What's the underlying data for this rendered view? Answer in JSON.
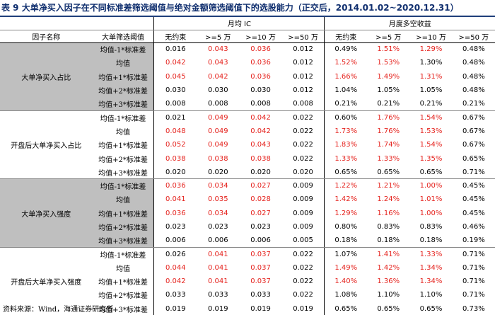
{
  "title": {
    "number": "表 9",
    "text": "大单净买入因子在不同标准差筛选阈值与绝对金额筛选阈值下的选股能力（正交后，2014.01.02~2020.12.31）"
  },
  "header": {
    "factor_name": "因子名称",
    "threshold": "大单筛选阈值",
    "ic_group": "月均 IC",
    "ret_group": "月度多空收益",
    "cols": [
      "无约束",
      ">=5 万",
      ">=10 万",
      ">=50 万"
    ]
  },
  "highlight_color": "#e5231e",
  "groups": [
    {
      "name": "大单净买入占比",
      "rows": [
        {
          "thr": "均值-1*标准差",
          "ic": [
            "0.016",
            "0.043",
            "0.036",
            "0.012"
          ],
          "ic_red": [
            false,
            true,
            true,
            false
          ],
          "ret": [
            "0.49%",
            "1.51%",
            "1.29%",
            "0.48%"
          ],
          "ret_red": [
            false,
            true,
            true,
            false
          ]
        },
        {
          "thr": "均值",
          "ic": [
            "0.042",
            "0.043",
            "0.036",
            "0.012"
          ],
          "ic_red": [
            true,
            true,
            true,
            false
          ],
          "ret": [
            "1.52%",
            "1.53%",
            "1.30%",
            "0.48%"
          ],
          "ret_red": [
            true,
            true,
            false,
            false
          ]
        },
        {
          "thr": "均值+1*标准差",
          "ic": [
            "0.045",
            "0.042",
            "0.036",
            "0.012"
          ],
          "ic_red": [
            true,
            true,
            true,
            false
          ],
          "ret": [
            "1.66%",
            "1.49%",
            "1.31%",
            "0.48%"
          ],
          "ret_red": [
            true,
            true,
            true,
            false
          ]
        },
        {
          "thr": "均值+2*标准差",
          "ic": [
            "0.030",
            "0.030",
            "0.030",
            "0.012"
          ],
          "ic_red": [
            false,
            false,
            false,
            false
          ],
          "ret": [
            "1.04%",
            "1.05%",
            "1.05%",
            "0.48%"
          ],
          "ret_red": [
            false,
            false,
            false,
            false
          ]
        },
        {
          "thr": "均值+3*标准差",
          "ic": [
            "0.008",
            "0.008",
            "0.008",
            "0.008"
          ],
          "ic_red": [
            false,
            false,
            false,
            false
          ],
          "ret": [
            "0.21%",
            "0.21%",
            "0.21%",
            "0.21%"
          ],
          "ret_red": [
            false,
            false,
            false,
            false
          ]
        }
      ]
    },
    {
      "name": "开盘后大单净买入占比",
      "rows": [
        {
          "thr": "均值-1*标准差",
          "ic": [
            "0.021",
            "0.049",
            "0.042",
            "0.022"
          ],
          "ic_red": [
            false,
            true,
            true,
            false
          ],
          "ret": [
            "0.60%",
            "1.76%",
            "1.54%",
            "0.67%"
          ],
          "ret_red": [
            false,
            true,
            true,
            false
          ]
        },
        {
          "thr": "均值",
          "ic": [
            "0.048",
            "0.049",
            "0.042",
            "0.022"
          ],
          "ic_red": [
            true,
            true,
            true,
            false
          ],
          "ret": [
            "1.73%",
            "1.76%",
            "1.53%",
            "0.67%"
          ],
          "ret_red": [
            true,
            true,
            true,
            false
          ]
        },
        {
          "thr": "均值+1*标准差",
          "ic": [
            "0.052",
            "0.049",
            "0.043",
            "0.022"
          ],
          "ic_red": [
            true,
            true,
            true,
            false
          ],
          "ret": [
            "1.83%",
            "1.74%",
            "1.54%",
            "0.67%"
          ],
          "ret_red": [
            true,
            true,
            true,
            false
          ]
        },
        {
          "thr": "均值+2*标准差",
          "ic": [
            "0.038",
            "0.038",
            "0.038",
            "0.022"
          ],
          "ic_red": [
            true,
            true,
            true,
            false
          ],
          "ret": [
            "1.33%",
            "1.33%",
            "1.35%",
            "0.65%"
          ],
          "ret_red": [
            true,
            true,
            true,
            false
          ]
        },
        {
          "thr": "均值+3*标准差",
          "ic": [
            "0.020",
            "0.020",
            "0.020",
            "0.020"
          ],
          "ic_red": [
            false,
            false,
            false,
            false
          ],
          "ret": [
            "0.65%",
            "0.65%",
            "0.65%",
            "0.71%"
          ],
          "ret_red": [
            false,
            false,
            false,
            false
          ]
        }
      ]
    },
    {
      "name": "大单净买入强度",
      "rows": [
        {
          "thr": "均值-1*标准差",
          "ic": [
            "0.036",
            "0.034",
            "0.027",
            "0.009"
          ],
          "ic_red": [
            true,
            true,
            true,
            false
          ],
          "ret": [
            "1.22%",
            "1.21%",
            "1.00%",
            "0.45%"
          ],
          "ret_red": [
            true,
            true,
            true,
            false
          ]
        },
        {
          "thr": "均值",
          "ic": [
            "0.041",
            "0.035",
            "0.028",
            "0.009"
          ],
          "ic_red": [
            true,
            true,
            true,
            false
          ],
          "ret": [
            "1.42%",
            "1.24%",
            "1.01%",
            "0.45%"
          ],
          "ret_red": [
            true,
            true,
            true,
            false
          ]
        },
        {
          "thr": "均值+1*标准差",
          "ic": [
            "0.036",
            "0.034",
            "0.027",
            "0.009"
          ],
          "ic_red": [
            true,
            true,
            true,
            false
          ],
          "ret": [
            "1.29%",
            "1.16%",
            "1.00%",
            "0.45%"
          ],
          "ret_red": [
            true,
            true,
            true,
            false
          ]
        },
        {
          "thr": "均值+2*标准差",
          "ic": [
            "0.023",
            "0.023",
            "0.023",
            "0.009"
          ],
          "ic_red": [
            false,
            false,
            false,
            false
          ],
          "ret": [
            "0.80%",
            "0.83%",
            "0.83%",
            "0.46%"
          ],
          "ret_red": [
            false,
            false,
            false,
            false
          ]
        },
        {
          "thr": "均值+3*标准差",
          "ic": [
            "0.006",
            "0.006",
            "0.006",
            "0.005"
          ],
          "ic_red": [
            false,
            false,
            false,
            false
          ],
          "ret": [
            "0.18%",
            "0.18%",
            "0.18%",
            "0.19%"
          ],
          "ret_red": [
            false,
            false,
            false,
            false
          ]
        }
      ]
    },
    {
      "name": "开盘后大单净买入强度",
      "rows": [
        {
          "thr": "均值-1*标准差",
          "ic": [
            "0.026",
            "0.041",
            "0.037",
            "0.022"
          ],
          "ic_red": [
            false,
            true,
            true,
            false
          ],
          "ret": [
            "1.07%",
            "1.41%",
            "1.33%",
            "0.71%"
          ],
          "ret_red": [
            false,
            true,
            true,
            false
          ]
        },
        {
          "thr": "均值",
          "ic": [
            "0.044",
            "0.041",
            "0.037",
            "0.022"
          ],
          "ic_red": [
            true,
            true,
            true,
            false
          ],
          "ret": [
            "1.49%",
            "1.42%",
            "1.34%",
            "0.71%"
          ],
          "ret_red": [
            true,
            true,
            true,
            false
          ]
        },
        {
          "thr": "均值+1*标准差",
          "ic": [
            "0.042",
            "0.041",
            "0.037",
            "0.022"
          ],
          "ic_red": [
            true,
            true,
            true,
            false
          ],
          "ret": [
            "1.40%",
            "1.36%",
            "1.34%",
            "0.71%"
          ],
          "ret_red": [
            true,
            true,
            true,
            false
          ]
        },
        {
          "thr": "均值+2*标准差",
          "ic": [
            "0.033",
            "0.033",
            "0.033",
            "0.022"
          ],
          "ic_red": [
            false,
            false,
            false,
            false
          ],
          "ret": [
            "1.08%",
            "1.10%",
            "1.10%",
            "0.71%"
          ],
          "ret_red": [
            false,
            false,
            false,
            false
          ]
        },
        {
          "thr": "均值+3*标准差",
          "ic": [
            "0.019",
            "0.019",
            "0.019",
            "0.019"
          ],
          "ic_red": [
            false,
            false,
            false,
            false
          ],
          "ret": [
            "0.65%",
            "0.65%",
            "0.65%",
            "0.73%"
          ],
          "ret_red": [
            false,
            false,
            false,
            false
          ]
        }
      ]
    }
  ],
  "source": "资料来源：Wind，海通证券研究所"
}
